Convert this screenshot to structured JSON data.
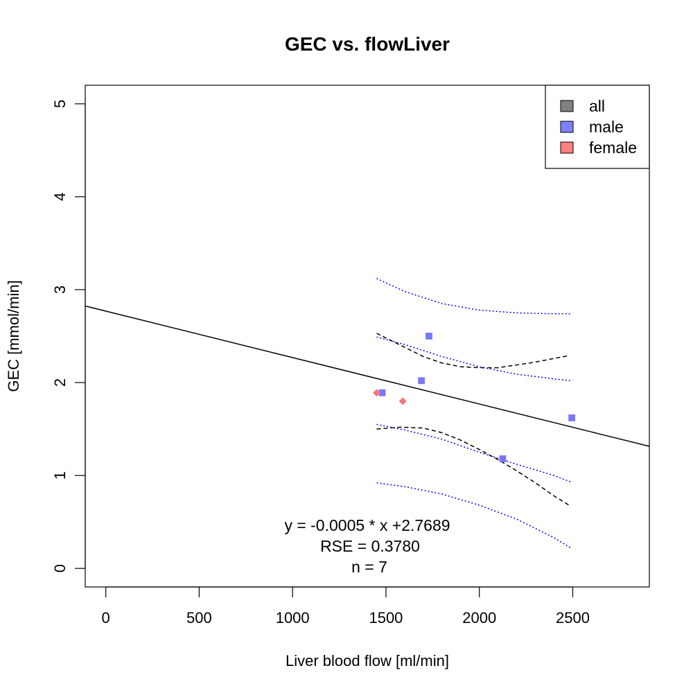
{
  "colors": {
    "all": "#808080",
    "male": "#8080ff",
    "female": "#ff8080",
    "male_point": "#7878f6",
    "female_point": "#f37878",
    "blue_band": "#0000ff",
    "black": "#000000"
  },
  "chart_data": {
    "type": "scatter",
    "title": "GEC vs. flowLiver",
    "xlabel": "Liver blood flow [ml/min]",
    "ylabel": "GEC [mmol/min]",
    "xlim": [
      -110,
      2910
    ],
    "ylim": [
      -0.2,
      5.2
    ],
    "xticks": [
      0,
      500,
      1000,
      1500,
      2000,
      2500
    ],
    "yticks": [
      0,
      1,
      2,
      3,
      4,
      5
    ],
    "xtick_labels": [
      "0",
      "500",
      "1000",
      "1500",
      "2000",
      "2500"
    ],
    "ytick_labels": [
      "0",
      "1",
      "2",
      "3",
      "4",
      "5"
    ],
    "grid": false,
    "legend_position": "top-right",
    "legend": [
      {
        "label": "all",
        "color": "#808080"
      },
      {
        "label": "male",
        "color": "#8080ff"
      },
      {
        "label": "female",
        "color": "#ff8080"
      }
    ],
    "series": [
      {
        "name": "male",
        "marker": "square",
        "points": [
          {
            "x": 1480,
            "y": 1.89
          },
          {
            "x": 1690,
            "y": 2.02
          },
          {
            "x": 1730,
            "y": 2.5
          },
          {
            "x": 2125,
            "y": 1.18
          },
          {
            "x": 2495,
            "y": 1.62
          }
        ]
      },
      {
        "name": "female",
        "marker": "diamond",
        "points": [
          {
            "x": 1450,
            "y": 1.89
          },
          {
            "x": 1590,
            "y": 1.8
          }
        ]
      }
    ],
    "regression": {
      "slope": -0.0005,
      "intercept": 2.7689,
      "equation_label": "y = -0.0005 * x +2.7689",
      "rse_label": "RSE = 0.3780",
      "n_label": "n = 7"
    },
    "confidence_band": {
      "x": [
        1450,
        1580,
        1700,
        1800,
        1900,
        2000,
        2100,
        2200,
        2300,
        2400,
        2480
      ],
      "upper": [
        2.53,
        2.4,
        2.28,
        2.21,
        2.17,
        2.16,
        2.16,
        2.19,
        2.22,
        2.26,
        2.29
      ],
      "lower": [
        1.5,
        1.52,
        1.51,
        1.46,
        1.38,
        1.28,
        1.17,
        1.05,
        0.92,
        0.78,
        0.68
      ]
    },
    "prediction_band_outer": {
      "x": [
        1450,
        1600,
        1800,
        2000,
        2200,
        2400,
        2490
      ],
      "upper": [
        3.12,
        2.98,
        2.85,
        2.78,
        2.75,
        2.74,
        2.74
      ],
      "lower": [
        0.92,
        0.88,
        0.8,
        0.68,
        0.53,
        0.33,
        0.22
      ]
    },
    "prediction_band_inner": {
      "x": [
        1450,
        1600,
        1800,
        2000,
        2200,
        2400,
        2490
      ],
      "upper": [
        2.49,
        2.41,
        2.28,
        2.17,
        2.09,
        2.04,
        2.02
      ],
      "lower": [
        1.55,
        1.49,
        1.39,
        1.25,
        1.12,
        1.0,
        0.93
      ]
    }
  }
}
